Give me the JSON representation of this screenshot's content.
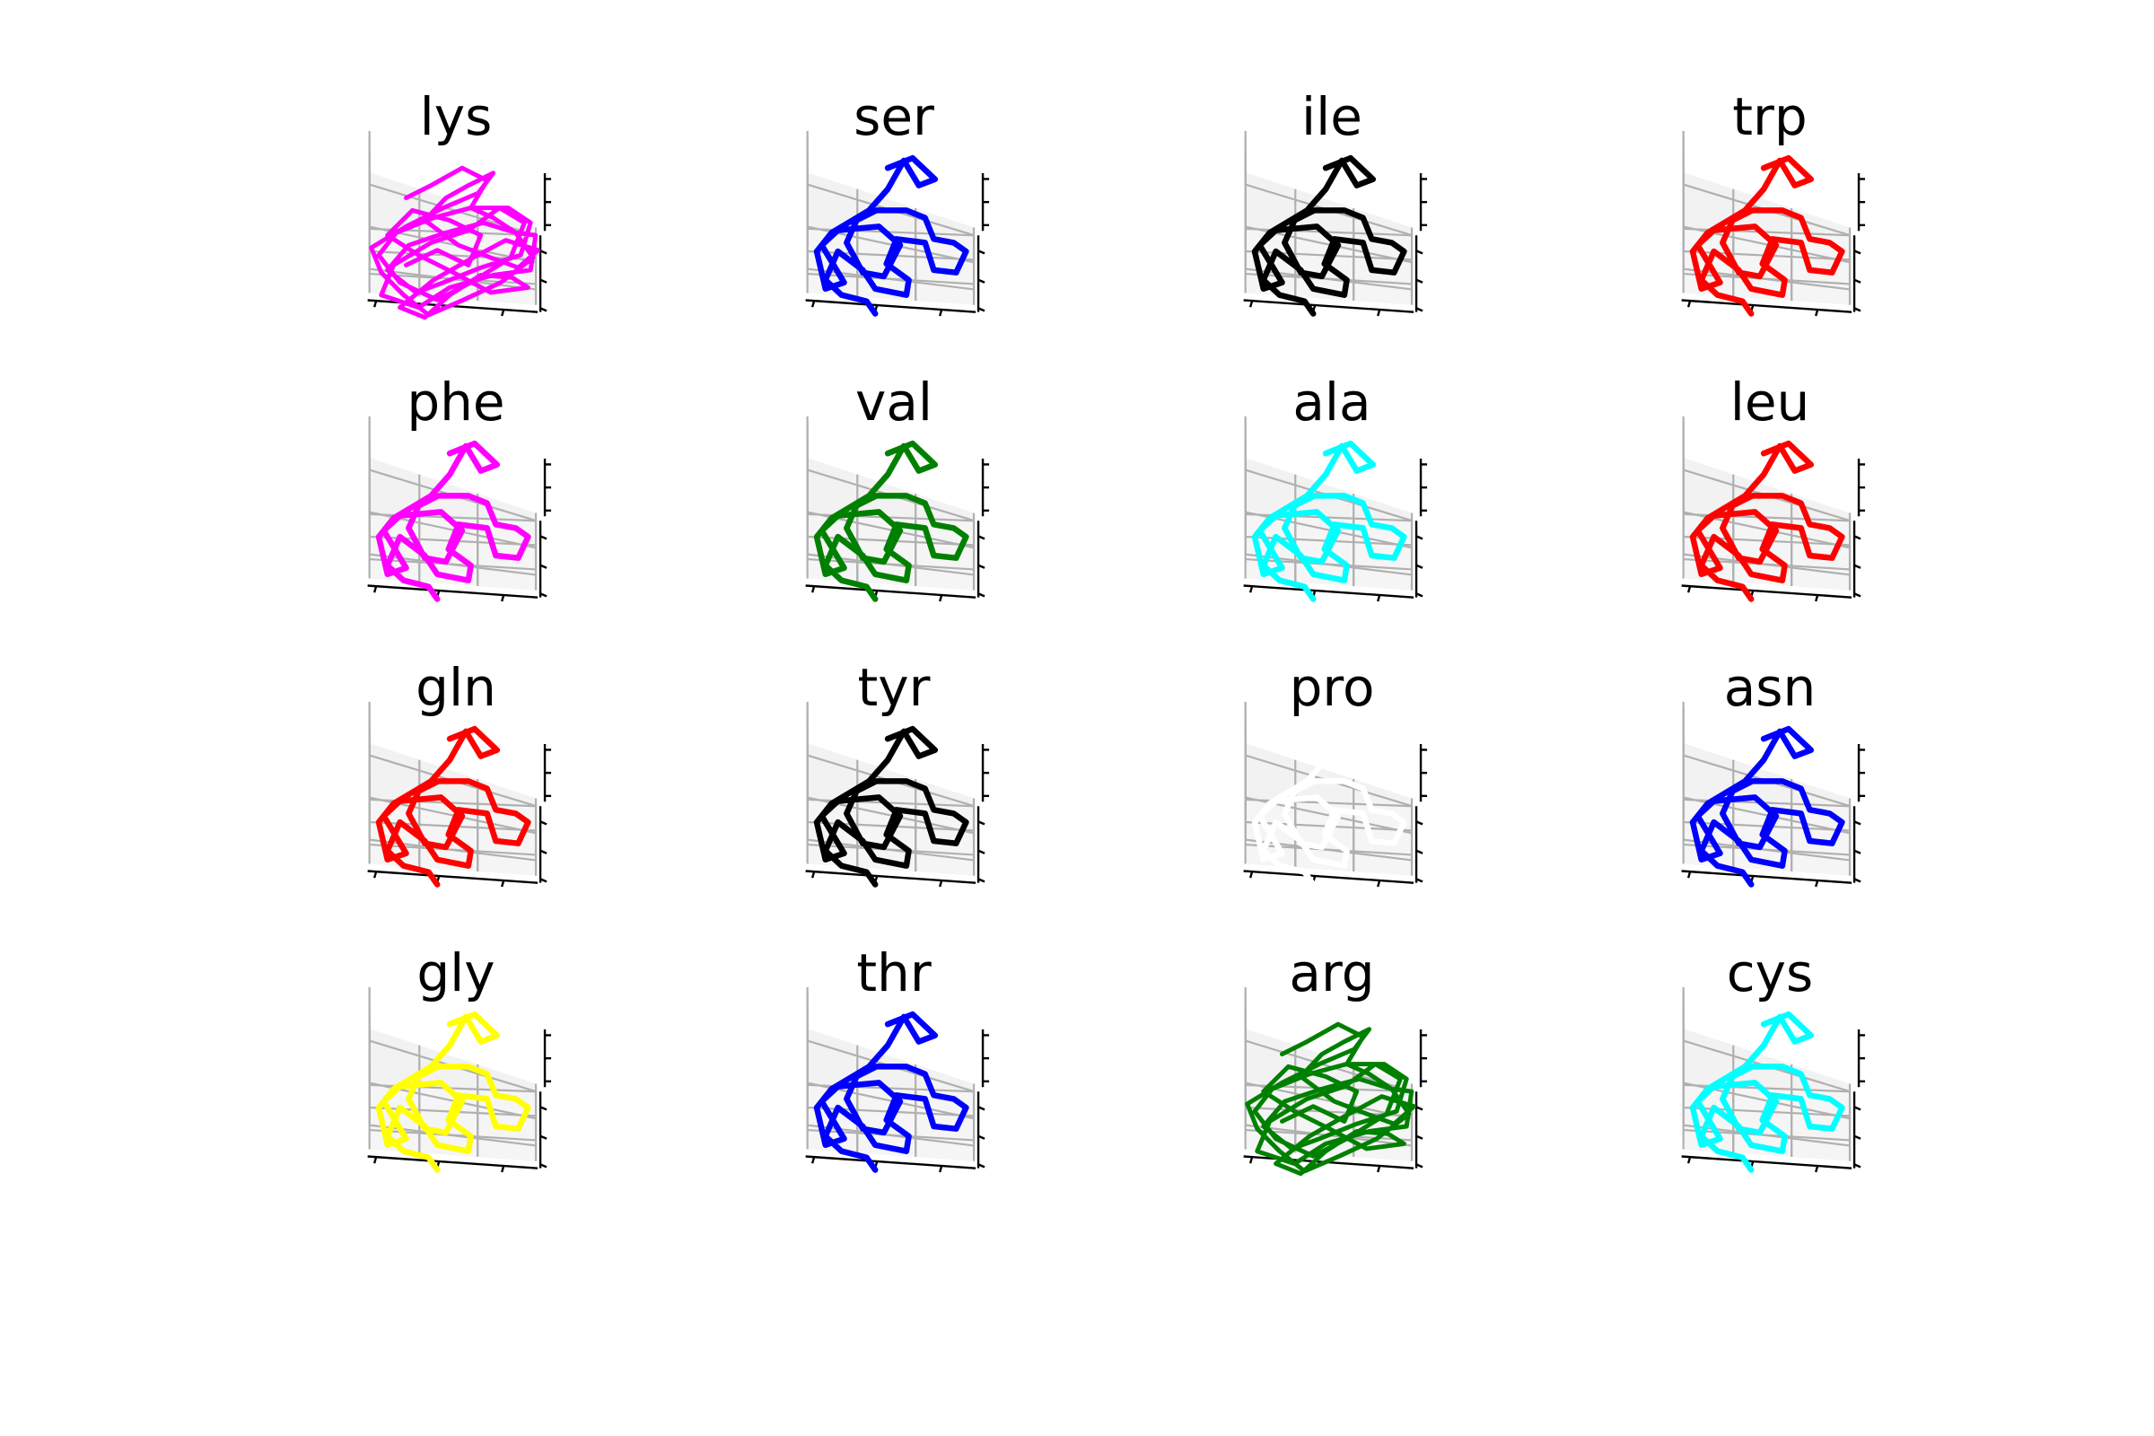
{
  "chart_data": [
    {
      "type": "line3d",
      "title": "lys",
      "color": "#ff00ff",
      "trace": "dense"
    },
    {
      "type": "line3d",
      "title": "ser",
      "color": "#0000ff",
      "trace": "fold"
    },
    {
      "type": "line3d",
      "title": "ile",
      "color": "#000000",
      "trace": "fold"
    },
    {
      "type": "line3d",
      "title": "trp",
      "color": "#ff0000",
      "trace": "fold"
    },
    {
      "type": "line3d",
      "title": "phe",
      "color": "#ff00ff",
      "trace": "fold"
    },
    {
      "type": "line3d",
      "title": "val",
      "color": "#008000",
      "trace": "fold"
    },
    {
      "type": "line3d",
      "title": "ala",
      "color": "#00ffff",
      "trace": "fold"
    },
    {
      "type": "line3d",
      "title": "leu",
      "color": "#ff0000",
      "trace": "fold"
    },
    {
      "type": "line3d",
      "title": "gln",
      "color": "#ff0000",
      "trace": "fold"
    },
    {
      "type": "line3d",
      "title": "tyr",
      "color": "#000000",
      "trace": "fold"
    },
    {
      "type": "line3d",
      "title": "pro",
      "color": "#ffffff",
      "trace": "fold"
    },
    {
      "type": "line3d",
      "title": "asn",
      "color": "#0000ff",
      "trace": "fold"
    },
    {
      "type": "line3d",
      "title": "gly",
      "color": "#ffff00",
      "trace": "fold"
    },
    {
      "type": "line3d",
      "title": "thr",
      "color": "#0000ff",
      "trace": "fold"
    },
    {
      "type": "line3d",
      "title": "arg",
      "color": "#008000",
      "trace": "dense"
    },
    {
      "type": "line3d",
      "title": "cys",
      "color": "#00ffff",
      "trace": "fold"
    }
  ]
}
